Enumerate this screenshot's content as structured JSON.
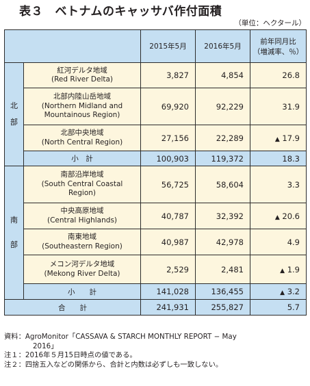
{
  "title": "表３　ベトナムのキャッサバ作付面積",
  "unit": "（単位：ヘクタール）",
  "header": {
    "col2015": "2015年5月",
    "col2016": "2016年5月",
    "yoy_line1": "前年同月比",
    "yoy_line2": "（増減率、％）"
  },
  "north": {
    "label_1": "北",
    "label_2": "部",
    "rows": [
      {
        "jp": "紅河デルタ地域",
        "en": "(Red River Delta)",
        "en2": "",
        "v2015": "3,827",
        "v2016": "4,854",
        "tri": "",
        "yoy": "26.8"
      },
      {
        "jp": "北部内陸山岳地域",
        "en": "(Northern Midland and",
        "en2": "Mountainous Region)",
        "v2015": "69,920",
        "v2016": "92,229",
        "tri": "",
        "yoy": "31.9"
      },
      {
        "jp": "北部中央地域",
        "en": "(North Central Region)",
        "en2": "",
        "v2015": "27,156",
        "v2016": "22,289",
        "tri": "▲",
        "yoy": "17.9"
      }
    ],
    "subtotal": {
      "label": "小　計",
      "v2015": "100,903",
      "v2016": "119,372",
      "tri": "",
      "yoy": "18.3"
    }
  },
  "south": {
    "label_1": "南",
    "label_2": "部",
    "rows": [
      {
        "jp": "南部沿岸地域",
        "en": "(South Central Coastal",
        "en2": "Region)",
        "v2015": "56,725",
        "v2016": "58,604",
        "tri": "",
        "yoy": "3.3"
      },
      {
        "jp": "中央高原地域",
        "en": "(Central Highlands)",
        "en2": "",
        "v2015": "40,787",
        "v2016": "32,392",
        "tri": "▲",
        "yoy": "20.6"
      },
      {
        "jp": "南東地域",
        "en": "(Southeastern Region)",
        "en2": "",
        "v2015": "40,987",
        "v2016": "42,978",
        "tri": "",
        "yoy": "4.9"
      },
      {
        "jp": "メコン河デルタ地域",
        "en": "(Mekong River Delta)",
        "en2": "",
        "v2015": "2,529",
        "v2016": "2,481",
        "tri": "▲",
        "yoy": "1.9"
      }
    ],
    "subtotal": {
      "label": "小　　計",
      "v2015": "141,028",
      "v2016": "136,455",
      "tri": "▲",
      "yoy": "3.2"
    }
  },
  "total": {
    "label": "合　　計",
    "v2015": "241,931",
    "v2016": "255,827",
    "yoy": "5.7"
  },
  "notes": {
    "source_1": "資料：AgroMonitor「CASSAVA & STARCH MONTHLY REPORT − May",
    "source_2": "2016」",
    "note_1": "注１：2016年５月15日時点の値である。",
    "note_2": "注２：四捨五入などの関係から、合計と内数は必ずしも一致しない。"
  }
}
